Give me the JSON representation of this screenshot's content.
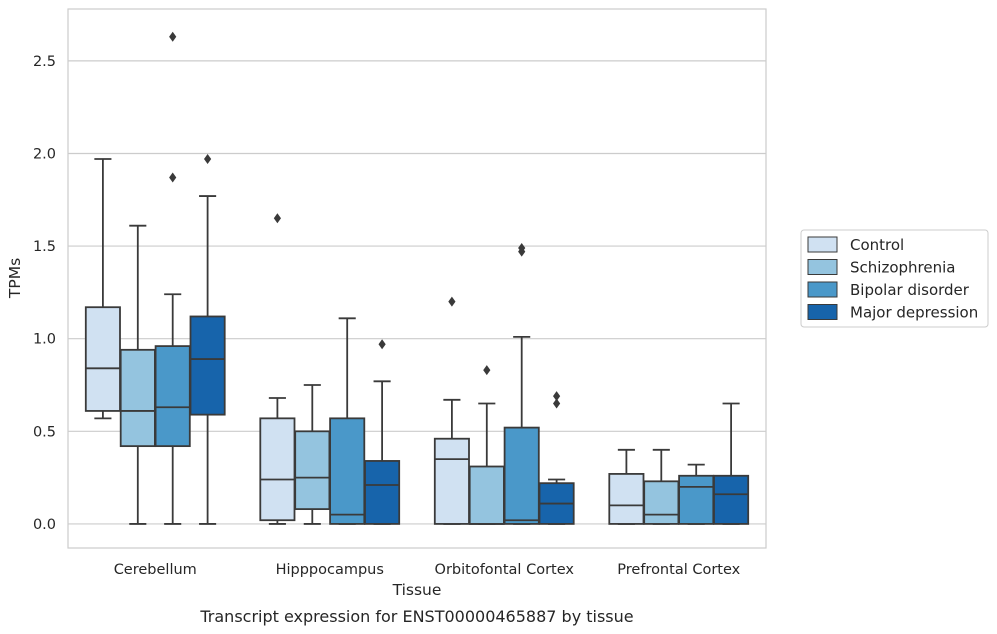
{
  "chart_data": {
    "type": "box",
    "xlabel": "Tissue",
    "ylabel": "TPMs",
    "caption": "Transcript expression for ENST00000465887 by tissue",
    "ylim": [
      -0.13,
      2.78
    ],
    "yticks": [
      0.0,
      0.5,
      1.0,
      1.5,
      2.0,
      2.5
    ],
    "ytick_labels": [
      "0.0",
      "0.5",
      "1.0",
      "1.5",
      "2.0",
      "2.5"
    ],
    "grid": "horizontal",
    "legend_position": "right",
    "categories": [
      "Cerebellum",
      "Hipppocampus",
      "Orbitofontal Cortex",
      "Prefrontal Cortex"
    ],
    "series": [
      {
        "name": "Control",
        "color": "#d0e1f2",
        "boxes": [
          {
            "q1": 0.61,
            "median": 0.84,
            "q3": 1.17,
            "whisker_low": 0.57,
            "whisker_high": 1.97,
            "outliers": []
          },
          {
            "q1": 0.02,
            "median": 0.24,
            "q3": 0.57,
            "whisker_low": 0.0,
            "whisker_high": 0.68,
            "outliers": [
              1.65
            ]
          },
          {
            "q1": 0.0,
            "median": 0.35,
            "q3": 0.46,
            "whisker_low": 0.0,
            "whisker_high": 0.67,
            "outliers": [
              1.2
            ]
          },
          {
            "q1": 0.0,
            "median": 0.1,
            "q3": 0.27,
            "whisker_low": 0.0,
            "whisker_high": 0.4,
            "outliers": []
          }
        ]
      },
      {
        "name": "Schizophrenia",
        "color": "#94c4df",
        "boxes": [
          {
            "q1": 0.42,
            "median": 0.61,
            "q3": 0.94,
            "whisker_low": 0.0,
            "whisker_high": 1.61,
            "outliers": []
          },
          {
            "q1": 0.08,
            "median": 0.25,
            "q3": 0.5,
            "whisker_low": 0.0,
            "whisker_high": 0.75,
            "outliers": []
          },
          {
            "q1": 0.0,
            "median": 0.0,
            "q3": 0.31,
            "whisker_low": 0.0,
            "whisker_high": 0.65,
            "outliers": [
              0.83
            ]
          },
          {
            "q1": 0.0,
            "median": 0.05,
            "q3": 0.23,
            "whisker_low": 0.0,
            "whisker_high": 0.4,
            "outliers": []
          }
        ]
      },
      {
        "name": "Bipolar disorder",
        "color": "#4a98c9",
        "boxes": [
          {
            "q1": 0.42,
            "median": 0.63,
            "q3": 0.96,
            "whisker_low": 0.0,
            "whisker_high": 1.24,
            "outliers": [
              1.87,
              2.63
            ]
          },
          {
            "q1": 0.0,
            "median": 0.05,
            "q3": 0.57,
            "whisker_low": 0.0,
            "whisker_high": 1.11,
            "outliers": []
          },
          {
            "q1": 0.0,
            "median": 0.02,
            "q3": 0.52,
            "whisker_low": 0.0,
            "whisker_high": 1.01,
            "outliers": [
              1.47,
              1.49
            ]
          },
          {
            "q1": 0.0,
            "median": 0.2,
            "q3": 0.26,
            "whisker_low": 0.0,
            "whisker_high": 0.32,
            "outliers": []
          }
        ]
      },
      {
        "name": "Major depression",
        "color": "#1764ab",
        "boxes": [
          {
            "q1": 0.59,
            "median": 0.89,
            "q3": 1.12,
            "whisker_low": 0.0,
            "whisker_high": 1.77,
            "outliers": [
              1.97
            ]
          },
          {
            "q1": 0.0,
            "median": 0.21,
            "q3": 0.34,
            "whisker_low": 0.0,
            "whisker_high": 0.77,
            "outliers": [
              0.97
            ]
          },
          {
            "q1": 0.0,
            "median": 0.11,
            "q3": 0.22,
            "whisker_low": 0.0,
            "whisker_high": 0.24,
            "outliers": [
              0.65,
              0.69
            ]
          },
          {
            "q1": 0.0,
            "median": 0.16,
            "q3": 0.26,
            "whisker_low": 0.0,
            "whisker_high": 0.65,
            "outliers": []
          }
        ]
      }
    ]
  }
}
